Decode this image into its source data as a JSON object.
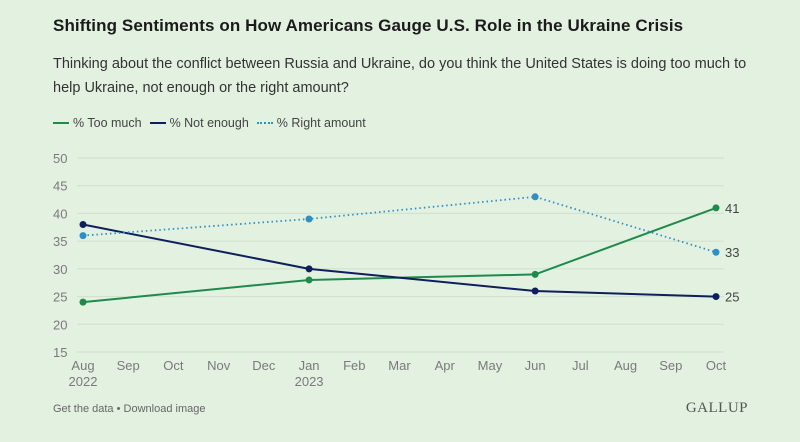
{
  "header": {
    "title": "Shifting Sentiments on How Americans Gauge U.S. Role in the Ukraine Crisis",
    "subtitle": "Thinking about the conflict between Russia and Ukraine, do you think the United States is doing too much to help Ukraine, not enough or the right amount?"
  },
  "legend": [
    {
      "label": "% Too much",
      "color": "#1f8a4c",
      "style": "solid"
    },
    {
      "label": "% Not enough",
      "color": "#0e1f5b",
      "style": "solid"
    },
    {
      "label": "% Right amount",
      "color": "#2e8fc4",
      "style": "dotted"
    }
  ],
  "footer": {
    "get_data": "Get the data",
    "separator": "•",
    "download": "Download image",
    "brand": "GALLUP"
  },
  "chart_data": {
    "type": "line",
    "title": "Shifting Sentiments on How Americans Gauge U.S. Role in the Ukraine Crisis",
    "xlabel": "",
    "ylabel": "",
    "ylim": [
      15,
      50
    ],
    "yticks": [
      15,
      20,
      25,
      30,
      35,
      40,
      45,
      50
    ],
    "grid": true,
    "legend_position": "top-left",
    "x_ticks": [
      {
        "month": 0,
        "label": "Aug",
        "sub": "2022"
      },
      {
        "month": 1,
        "label": "Sep",
        "sub": ""
      },
      {
        "month": 2,
        "label": "Oct",
        "sub": ""
      },
      {
        "month": 3,
        "label": "Nov",
        "sub": ""
      },
      {
        "month": 4,
        "label": "Dec",
        "sub": ""
      },
      {
        "month": 5,
        "label": "Jan",
        "sub": "2023"
      },
      {
        "month": 6,
        "label": "Feb",
        "sub": ""
      },
      {
        "month": 7,
        "label": "Mar",
        "sub": ""
      },
      {
        "month": 8,
        "label": "Apr",
        "sub": ""
      },
      {
        "month": 9,
        "label": "May",
        "sub": ""
      },
      {
        "month": 10,
        "label": "Jun",
        "sub": ""
      },
      {
        "month": 11,
        "label": "Jul",
        "sub": ""
      },
      {
        "month": 12,
        "label": "Aug",
        "sub": ""
      },
      {
        "month": 13,
        "label": "Sep",
        "sub": ""
      },
      {
        "month": 14,
        "label": "Oct",
        "sub": ""
      }
    ],
    "x": [
      "Aug 2022",
      "Jan 2023",
      "Jun 2023",
      "Oct 2023"
    ],
    "x_month_index": [
      0,
      5,
      10,
      14
    ],
    "series": [
      {
        "name": "% Too much",
        "color": "#1f8a4c",
        "style": "solid",
        "values": [
          24,
          28,
          29,
          41
        ],
        "end_label": "41"
      },
      {
        "name": "% Not enough",
        "color": "#0e1f5b",
        "style": "solid",
        "values": [
          38,
          30,
          26,
          25
        ],
        "end_label": "25"
      },
      {
        "name": "% Right amount",
        "color": "#2e8fc4",
        "style": "dotted",
        "values": [
          36,
          39,
          43,
          33
        ],
        "end_label": "33"
      }
    ]
  }
}
